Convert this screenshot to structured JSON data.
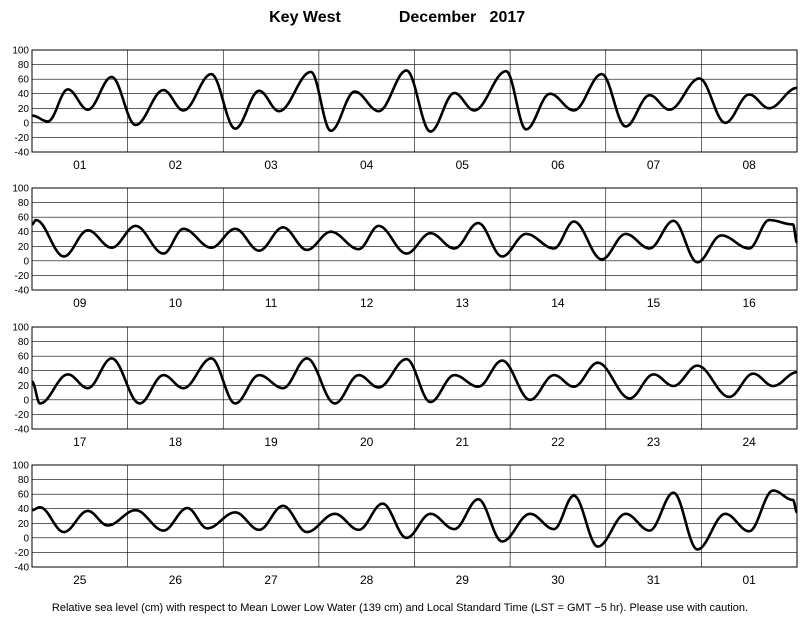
{
  "chart_data": {
    "type": "line",
    "title_place": "Key West",
    "title_period": "December   2017",
    "footnote": "Relative sea level (cm) with respect to Mean Lower Low Water (139 cm) and Local Standard Time (LST = GMT −5 hr). Please use with caution.",
    "ylim": [
      -40,
      100
    ],
    "yticks": [
      100,
      80,
      60,
      40,
      20,
      0,
      -20,
      -40
    ],
    "grid": true,
    "line_color": "#000000",
    "panels": [
      {
        "days": [
          "01",
          "02",
          "03",
          "04",
          "05",
          "06",
          "07",
          "08"
        ],
        "series": [
          {
            "x": [
              0,
              4,
              9,
              14,
              20,
              2,
              9,
              14,
              21,
              3,
              9,
              14,
              22,
              3,
              9,
              15,
              22,
              4,
              10,
              15,
              23,
              4,
              10,
              16,
              23,
              5,
              11,
              16,
              23.5,
              6,
              12,
              17,
              24
            ],
            "day_index": [
              0,
              0,
              0,
              0,
              0,
              1,
              1,
              1,
              1,
              2,
              2,
              2,
              2,
              3,
              3,
              3,
              3,
              4,
              4,
              4,
              4,
              5,
              5,
              5,
              5,
              6,
              6,
              6,
              6,
              7,
              7,
              7,
              7
            ],
            "y": [
              10,
              2,
              46,
              18,
              63,
              -3,
              45,
              17,
              67,
              -8,
              44,
              16,
              70,
              -11,
              43,
              16,
              72,
              -12,
              41,
              17,
              71,
              -9,
              40,
              17,
              67,
              -5,
              38,
              18,
              61,
              0,
              39,
              20,
              48
            ]
          }
        ]
      },
      {
        "days": [
          "09",
          "10",
          "11",
          "12",
          "13",
          "14",
          "15",
          "16"
        ],
        "series": [
          {
            "x": [
              0,
              1,
              8,
              14,
              20,
              2,
              9,
              14,
              21,
              3,
              9,
              15,
              21,
              3,
              10,
              15,
              22,
              4,
              10,
              16,
              22,
              4,
              11,
              16,
              23,
              5,
              11,
              17,
              23,
              5,
              12,
              17,
              23,
              24
            ],
            "day_index": [
              0,
              0,
              0,
              0,
              0,
              1,
              1,
              1,
              1,
              2,
              2,
              2,
              2,
              3,
              3,
              3,
              3,
              4,
              4,
              4,
              4,
              5,
              5,
              5,
              5,
              6,
              6,
              6,
              6,
              7,
              7,
              7,
              7,
              7
            ],
            "y": [
              50,
              56,
              6,
              42,
              18,
              48,
              10,
              44,
              18,
              44,
              14,
              46,
              15,
              40,
              16,
              48,
              10,
              38,
              17,
              52,
              6,
              37,
              17,
              54,
              2,
              37,
              17,
              55,
              -2,
              35,
              17,
              56,
              50,
              25
            ]
          }
        ]
      },
      {
        "days": [
          "17",
          "18",
          "19",
          "20",
          "21",
          "22",
          "23",
          "24"
        ],
        "series": [
          {
            "x": [
              0,
              2,
              9,
              14,
              20,
              3,
              9,
              14,
              21,
              3,
              9,
              15,
              21,
              4,
              10,
              15,
              22,
              4,
              10,
              16,
              22,
              5,
              11,
              16,
              22,
              6,
              12,
              17,
              23,
              7,
              13,
              18,
              24
            ],
            "day_index": [
              0,
              0,
              0,
              0,
              0,
              1,
              1,
              1,
              1,
              2,
              2,
              2,
              2,
              3,
              3,
              3,
              3,
              4,
              4,
              4,
              4,
              5,
              5,
              5,
              5,
              6,
              6,
              6,
              6,
              7,
              7,
              7,
              7
            ],
            "y": [
              25,
              -5,
              35,
              16,
              57,
              -5,
              34,
              16,
              57,
              -5,
              34,
              16,
              57,
              -5,
              34,
              17,
              56,
              -3,
              34,
              18,
              54,
              0,
              34,
              18,
              51,
              2,
              35,
              19,
              47,
              4,
              36,
              19,
              38
            ]
          }
        ]
      },
      {
        "days": [
          "25",
          "26",
          "27",
          "28",
          "29",
          "30",
          "31",
          "01"
        ],
        "series": [
          {
            "x": [
              0,
              2,
              8,
              14,
              19,
              2,
              9,
              15,
              20,
              3,
              9,
              15,
              21,
              4,
              10,
              16,
              22,
              4,
              10,
              16,
              22,
              5,
              11,
              16,
              22,
              5,
              11,
              17,
              23,
              6,
              12,
              18,
              23,
              24
            ],
            "day_index": [
              0,
              0,
              0,
              0,
              0,
              1,
              1,
              1,
              1,
              2,
              2,
              2,
              2,
              3,
              3,
              3,
              3,
              4,
              4,
              4,
              4,
              5,
              5,
              5,
              5,
              6,
              6,
              6,
              6,
              7,
              7,
              7,
              7,
              7
            ],
            "y": [
              38,
              42,
              8,
              37,
              17,
              38,
              10,
              41,
              13,
              35,
              11,
              44,
              8,
              33,
              11,
              47,
              0,
              33,
              12,
              53,
              -5,
              33,
              12,
              58,
              -12,
              33,
              10,
              62,
              -16,
              33,
              9,
              65,
              52,
              35
            ]
          }
        ]
      }
    ]
  }
}
